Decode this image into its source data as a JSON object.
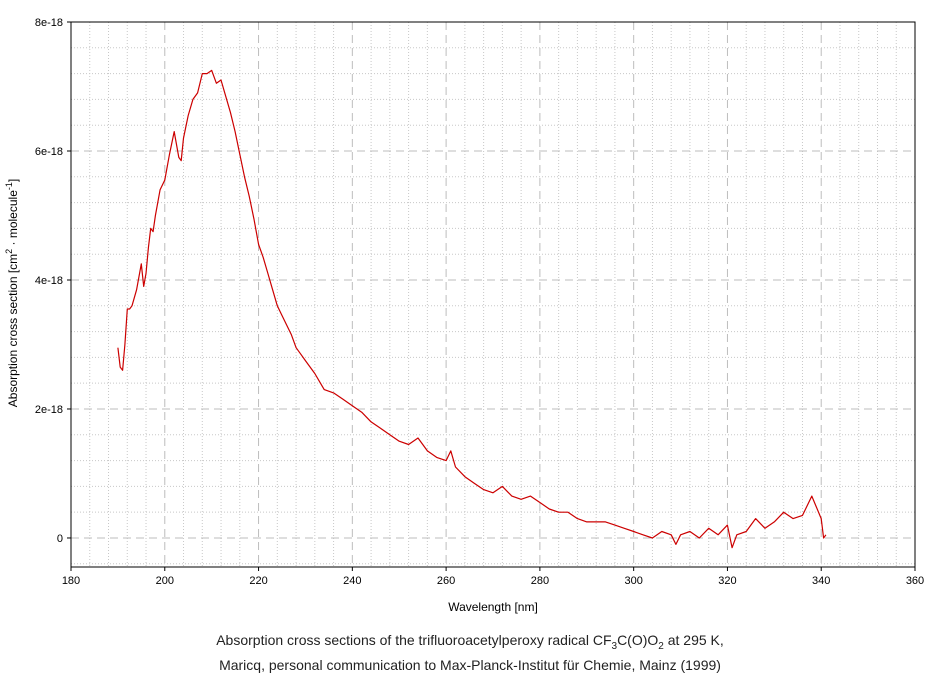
{
  "chart_data": {
    "type": "line",
    "xlabel": "Wavelength [nm]",
    "ylabel": {
      "text": "Absorption cross section [cm",
      "sup1": "2",
      "mid": " · molecule",
      "sup2": "-1",
      "end": "]"
    },
    "xlim": [
      180,
      360
    ],
    "ylim": [
      -4.5e-19,
      8e-18
    ],
    "x_ticks": [
      180,
      200,
      220,
      240,
      260,
      280,
      300,
      320,
      340,
      360
    ],
    "x_tick_labels": [
      "180",
      "200",
      "220",
      "240",
      "260",
      "280",
      "300",
      "320",
      "340",
      "360"
    ],
    "y_ticks": [
      0,
      2e-18,
      4e-18,
      6e-18,
      8e-18
    ],
    "y_tick_labels": [
      "0",
      "2e-18",
      "4e-18",
      "6e-18",
      "8e-18"
    ],
    "grid": true,
    "series": [
      {
        "color": "#cc0000",
        "x": [
          190,
          190.5,
          191,
          191.5,
          192,
          192.5,
          193,
          194,
          195,
          195.5,
          196,
          196.5,
          197,
          197.5,
          198,
          199,
          200,
          201,
          202,
          203,
          203.5,
          204,
          205,
          206,
          207,
          208,
          209,
          210,
          211,
          212,
          213,
          214,
          215,
          216,
          217,
          218,
          219,
          220,
          221,
          222,
          223,
          224,
          225,
          226,
          227,
          228,
          229,
          230,
          232,
          234,
          236,
          238,
          240,
          242,
          244,
          246,
          248,
          250,
          252,
          254,
          256,
          258,
          260,
          261,
          262,
          264,
          266,
          268,
          270,
          272,
          274,
          276,
          278,
          280,
          282,
          284,
          286,
          288,
          290,
          292,
          294,
          296,
          298,
          300,
          302,
          304,
          306,
          308,
          309,
          310,
          312,
          314,
          316,
          318,
          320,
          321,
          322,
          324,
          326,
          328,
          330,
          332,
          334,
          336,
          338,
          340,
          340.5,
          341
        ],
        "y": [
          2.95e-18,
          2.65e-18,
          2.6e-18,
          3e-18,
          3.55e-18,
          3.55e-18,
          3.6e-18,
          3.85e-18,
          4.25e-18,
          3.9e-18,
          4.1e-18,
          4.5e-18,
          4.8e-18,
          4.75e-18,
          5e-18,
          5.4e-18,
          5.55e-18,
          5.95e-18,
          6.3e-18,
          5.9e-18,
          5.85e-18,
          6.2e-18,
          6.55e-18,
          6.8e-18,
          6.9e-18,
          7.2e-18,
          7.2e-18,
          7.25e-18,
          7.05e-18,
          7.1e-18,
          6.85e-18,
          6.6e-18,
          6.3e-18,
          5.95e-18,
          5.6e-18,
          5.3e-18,
          4.95e-18,
          4.55e-18,
          4.35e-18,
          4.1e-18,
          3.85e-18,
          3.6e-18,
          3.45e-18,
          3.3e-18,
          3.15e-18,
          2.95e-18,
          2.85e-18,
          2.75e-18,
          2.55e-18,
          2.3e-18,
          2.25e-18,
          2.15e-18,
          2.05e-18,
          1.95e-18,
          1.8e-18,
          1.7e-18,
          1.6e-18,
          1.5e-18,
          1.45e-18,
          1.55e-18,
          1.35e-18,
          1.25e-18,
          1.2e-18,
          1.35e-18,
          1.1e-18,
          9.5e-19,
          8.5e-19,
          7.5e-19,
          7e-19,
          8e-19,
          6.5e-19,
          6e-19,
          6.5e-19,
          5.5e-19,
          4.5e-19,
          4e-19,
          4e-19,
          3e-19,
          2.5e-19,
          2.5e-19,
          2.5e-19,
          2e-19,
          1.5e-19,
          1e-19,
          5e-20,
          0.0,
          1e-19,
          5e-20,
          -1e-19,
          5e-20,
          1e-19,
          0.0,
          1.5e-19,
          5e-20,
          2e-19,
          -1.5e-19,
          5e-20,
          1e-19,
          3e-19,
          1.5e-19,
          2.5e-19,
          4e-19,
          3e-19,
          3.5e-19,
          6.5e-19,
          3e-19,
          0.0,
          5e-20
        ]
      }
    ]
  },
  "caption": {
    "line1_a": "Absorption cross sections of the trifluoroacetylperoxy radical CF",
    "line1_sub1": "3",
    "line1_b": "C(O)O",
    "line1_sub2": "2",
    "line1_c": " at 295 K,",
    "line2": "Maricq, personal communication to Max-Planck-Institut für Chemie, Mainz (1999)"
  }
}
